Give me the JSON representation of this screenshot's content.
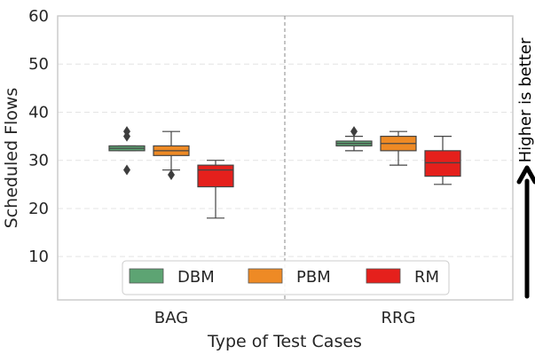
{
  "chart_data": {
    "type": "boxplot",
    "xlabel": "Type of Test Cases",
    "ylabel": "Scheduled Flows",
    "ylim": [
      1,
      60
    ],
    "yticks": [
      10,
      20,
      30,
      40,
      50,
      60
    ],
    "grid": "horizontal dashed",
    "categories": [
      "BAG",
      "RRG"
    ],
    "series": [
      {
        "name": "DBM",
        "color": "#5da473",
        "boxes": [
          {
            "category": "BAG",
            "whisker_low": 32,
            "q1": 32,
            "median": 32.5,
            "q3": 33,
            "whisker_high": 33,
            "outliers": [
              28,
              35,
              36
            ]
          },
          {
            "category": "RRG",
            "whisker_low": 32,
            "q1": 33,
            "median": 33.5,
            "q3": 34,
            "whisker_high": 35,
            "outliers": [
              36
            ]
          }
        ]
      },
      {
        "name": "PBM",
        "color": "#ee8a25",
        "boxes": [
          {
            "category": "BAG",
            "whisker_low": 28,
            "q1": 31,
            "median": 32,
            "q3": 33,
            "whisker_high": 36,
            "outliers": [
              27
            ]
          },
          {
            "category": "RRG",
            "whisker_low": 29,
            "q1": 32,
            "median": 33.5,
            "q3": 35,
            "whisker_high": 36,
            "outliers": []
          }
        ]
      },
      {
        "name": "RM",
        "color": "#e5201c",
        "boxes": [
          {
            "category": "BAG",
            "whisker_low": 18,
            "q1": 24.5,
            "median": 28,
            "q3": 29,
            "whisker_high": 30,
            "outliers": []
          },
          {
            "category": "RRG",
            "whisker_low": 25,
            "q1": 26.7,
            "median": 29.5,
            "q3": 32,
            "whisker_high": 35,
            "outliers": []
          }
        ]
      }
    ],
    "legend": {
      "placement": "bottom-center",
      "entries": [
        "DBM",
        "PBM",
        "RM"
      ]
    },
    "annotation": "Higher is better"
  }
}
